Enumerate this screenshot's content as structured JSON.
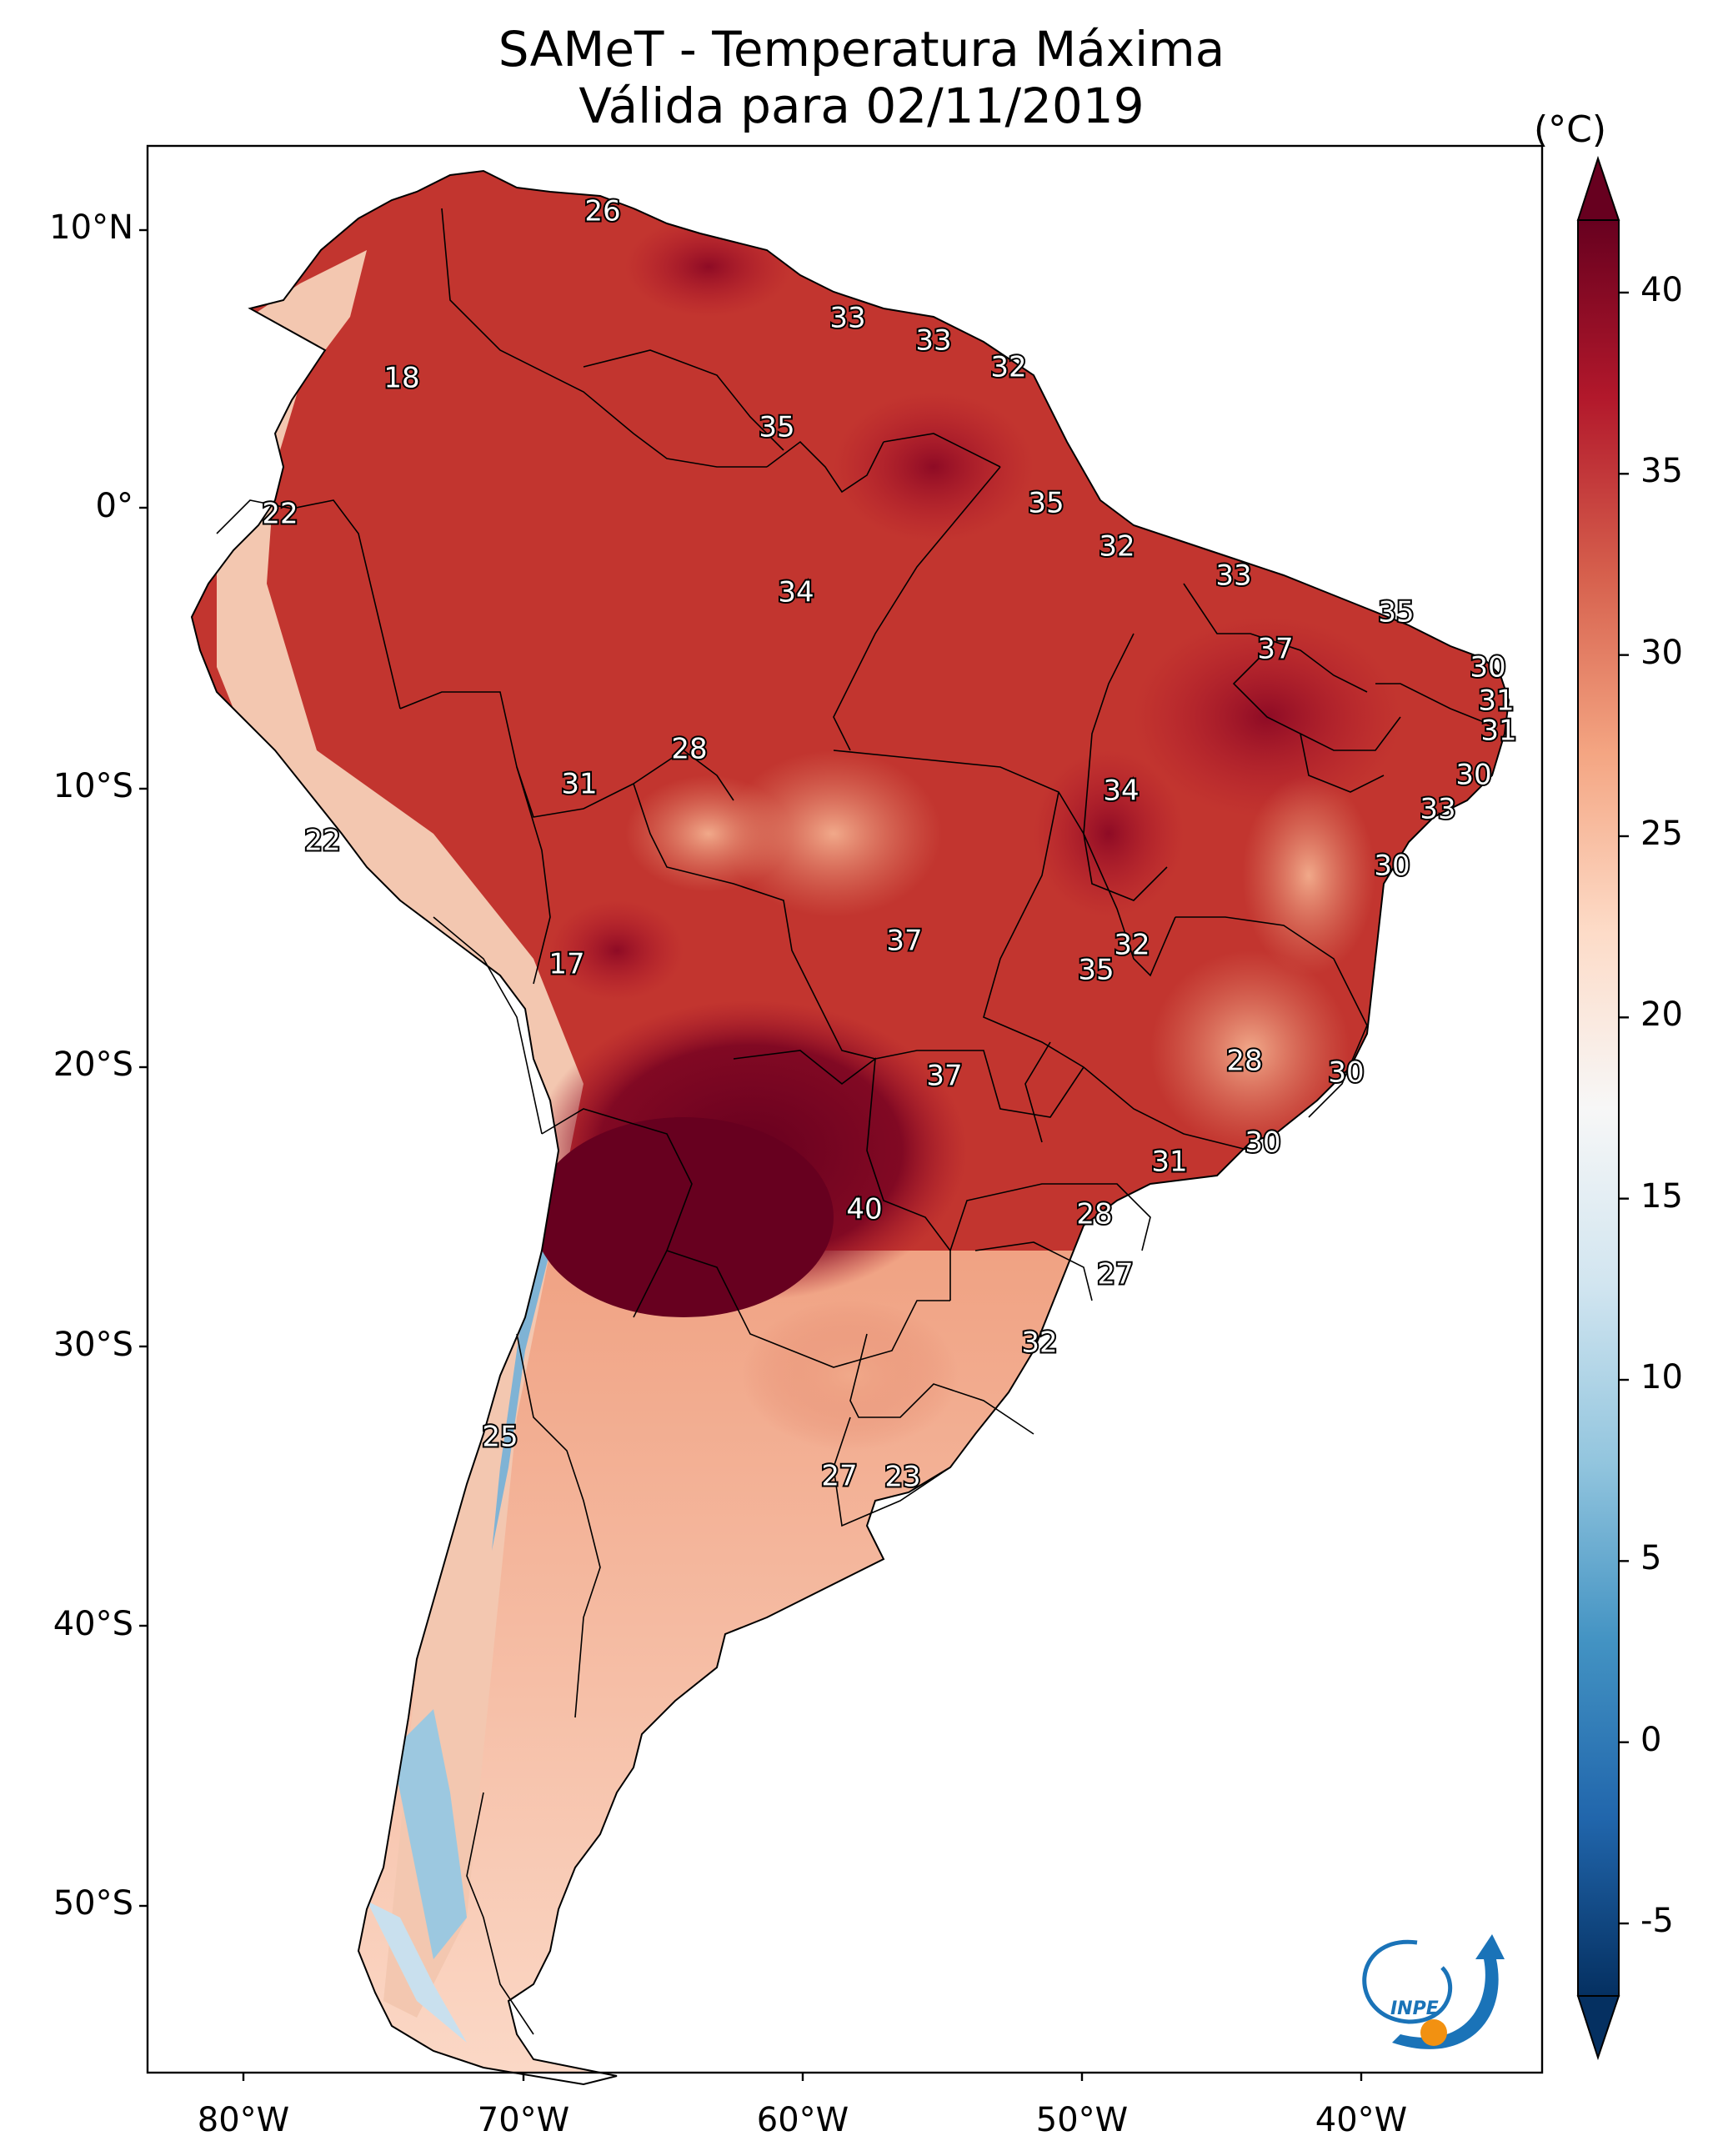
{
  "title": {
    "line1": "SAMeT - Temperatura Máxima",
    "line2": "Válida para 02/11/2019"
  },
  "axes": {
    "latitude_labels": [
      "10°N",
      "0°",
      "10°S",
      "20°S",
      "30°S",
      "40°S",
      "50°S"
    ],
    "longitude_labels": [
      "80°W",
      "70°W",
      "60°W",
      "50°W",
      "40°W"
    ]
  },
  "colorbar": {
    "unit": "(°C)",
    "min": -7,
    "max": 42,
    "ticks": [
      "40",
      "35",
      "30",
      "25",
      "20",
      "15",
      "10",
      "5",
      "0",
      "-5"
    ],
    "colors": [
      "#053061",
      "#2166ac",
      "#4393c3",
      "#92c5de",
      "#d1e5f0",
      "#f7f7f7",
      "#fddbc7",
      "#f4a582",
      "#d6604d",
      "#b2182b",
      "#67001f"
    ]
  },
  "temperature_labels": [
    "26",
    "18",
    "33",
    "33",
    "32",
    "35",
    "22",
    "35",
    "32",
    "33",
    "35",
    "34",
    "37",
    "30",
    "31",
    "31",
    "28",
    "31",
    "30",
    "34",
    "33",
    "22",
    "30",
    "37",
    "32",
    "17",
    "35",
    "28",
    "30",
    "37",
    "30",
    "31",
    "40",
    "28",
    "27",
    "32",
    "25",
    "27",
    "23"
  ],
  "logo": {
    "name": "INPE",
    "colors": [
      "#1a73b8",
      "#f29111"
    ]
  }
}
